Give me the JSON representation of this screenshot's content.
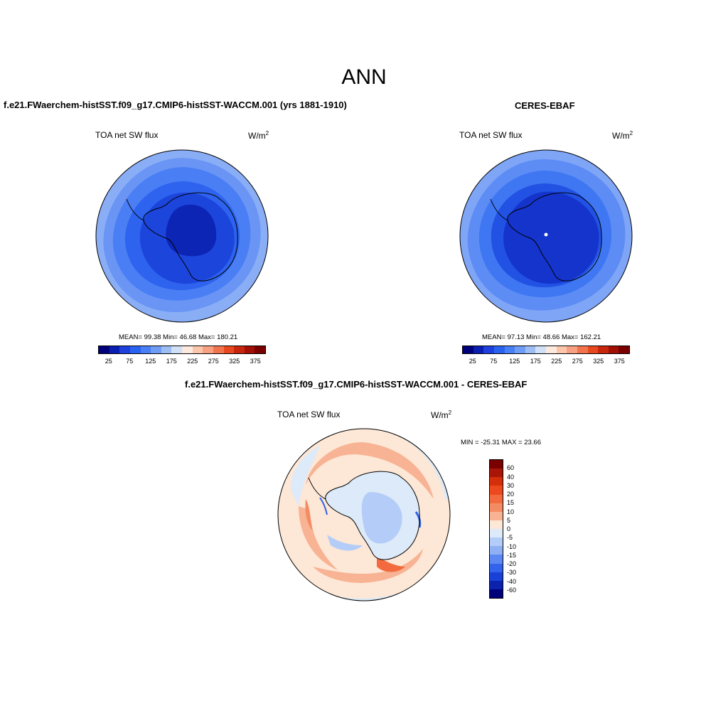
{
  "main_title": "ANN",
  "panel1": {
    "title": "f.e21.FWaerchem-histSST.f09_g17.CMIP6-histSST-WACCM.001 (yrs 1881-1910)",
    "var_label": "TOA net SW flux",
    "units": "W/m",
    "units_sup": "2",
    "stats": "MEAN=  99.38  Min=  46.68  Max= 180.21"
  },
  "panel2": {
    "title": "CERES-EBAF",
    "var_label": "TOA net SW flux",
    "units": "W/m",
    "units_sup": "2",
    "stats": "MEAN=  97.13  Min=  48.66  Max= 162.21"
  },
  "panel3": {
    "title": "f.e21.FWaerchem-histSST.f09_g17.CMIP6-histSST-WACCM.001 - CERES-EBAF",
    "var_label": "TOA net SW flux",
    "units": "W/m",
    "units_sup": "2",
    "stats": "MIN = -25.31 MAX =  23.66"
  },
  "abs_colorbar": {
    "colors": [
      "#00007a",
      "#0a1fb0",
      "#1e40dd",
      "#2a62f0",
      "#4a80f5",
      "#6f9cf5",
      "#9ebdf5",
      "#cfe0f7",
      "#fdeadf",
      "#fbc6ab",
      "#f7a182",
      "#f2744f",
      "#e84820",
      "#c7260c",
      "#a10f05",
      "#7a0000"
    ],
    "ticks": [
      "25",
      "75",
      "125",
      "175",
      "225",
      "275",
      "325",
      "375"
    ]
  },
  "diff_colorbar": {
    "colors_top_to_bottom": [
      "#7a0000",
      "#a91506",
      "#d42e0b",
      "#ec4a1e",
      "#f26a3d",
      "#f48c63",
      "#f7b394",
      "#fde7d6",
      "#dceaf9",
      "#b4cdf8",
      "#8fb0f5",
      "#5d88f2",
      "#3363ea",
      "#1a41d6",
      "#0b22ad",
      "#00007a"
    ],
    "ticks": [
      "60",
      "40",
      "30",
      "20",
      "15",
      "10",
      "5",
      "0",
      "-5",
      "-10",
      "-15",
      "-20",
      "-30",
      "-40",
      "-60"
    ]
  },
  "chart_data": {
    "type": "heatmap",
    "projection": "south polar stereographic",
    "maps": [
      {
        "name": "f.e21.FWaerchem-histSST.f09_g17.CMIP6-histSST-WACCM.001 (yrs 1881-1910)",
        "field": "TOA net SW flux",
        "units": "W/m2",
        "mean": 99.38,
        "min": 46.68,
        "max": 180.21,
        "levels": [
          25,
          50,
          75,
          100,
          125,
          150,
          175,
          200,
          225,
          250,
          275,
          300,
          325,
          350,
          375
        ]
      },
      {
        "name": "CERES-EBAF",
        "field": "TOA net SW flux",
        "units": "W/m2",
        "mean": 97.13,
        "min": 48.66,
        "max": 162.21,
        "levels": [
          25,
          50,
          75,
          100,
          125,
          150,
          175,
          200,
          225,
          250,
          275,
          300,
          325,
          350,
          375
        ]
      },
      {
        "name": "f.e21.FWaerchem-histSST.f09_g17.CMIP6-histSST-WACCM.001 - CERES-EBAF",
        "field": "TOA net SW flux",
        "units": "W/m2",
        "min": -25.31,
        "max": 23.66,
        "levels": [
          -60,
          -40,
          -30,
          -20,
          -15,
          -10,
          -5,
          0,
          5,
          10,
          15,
          20,
          30,
          40,
          60
        ]
      }
    ]
  }
}
